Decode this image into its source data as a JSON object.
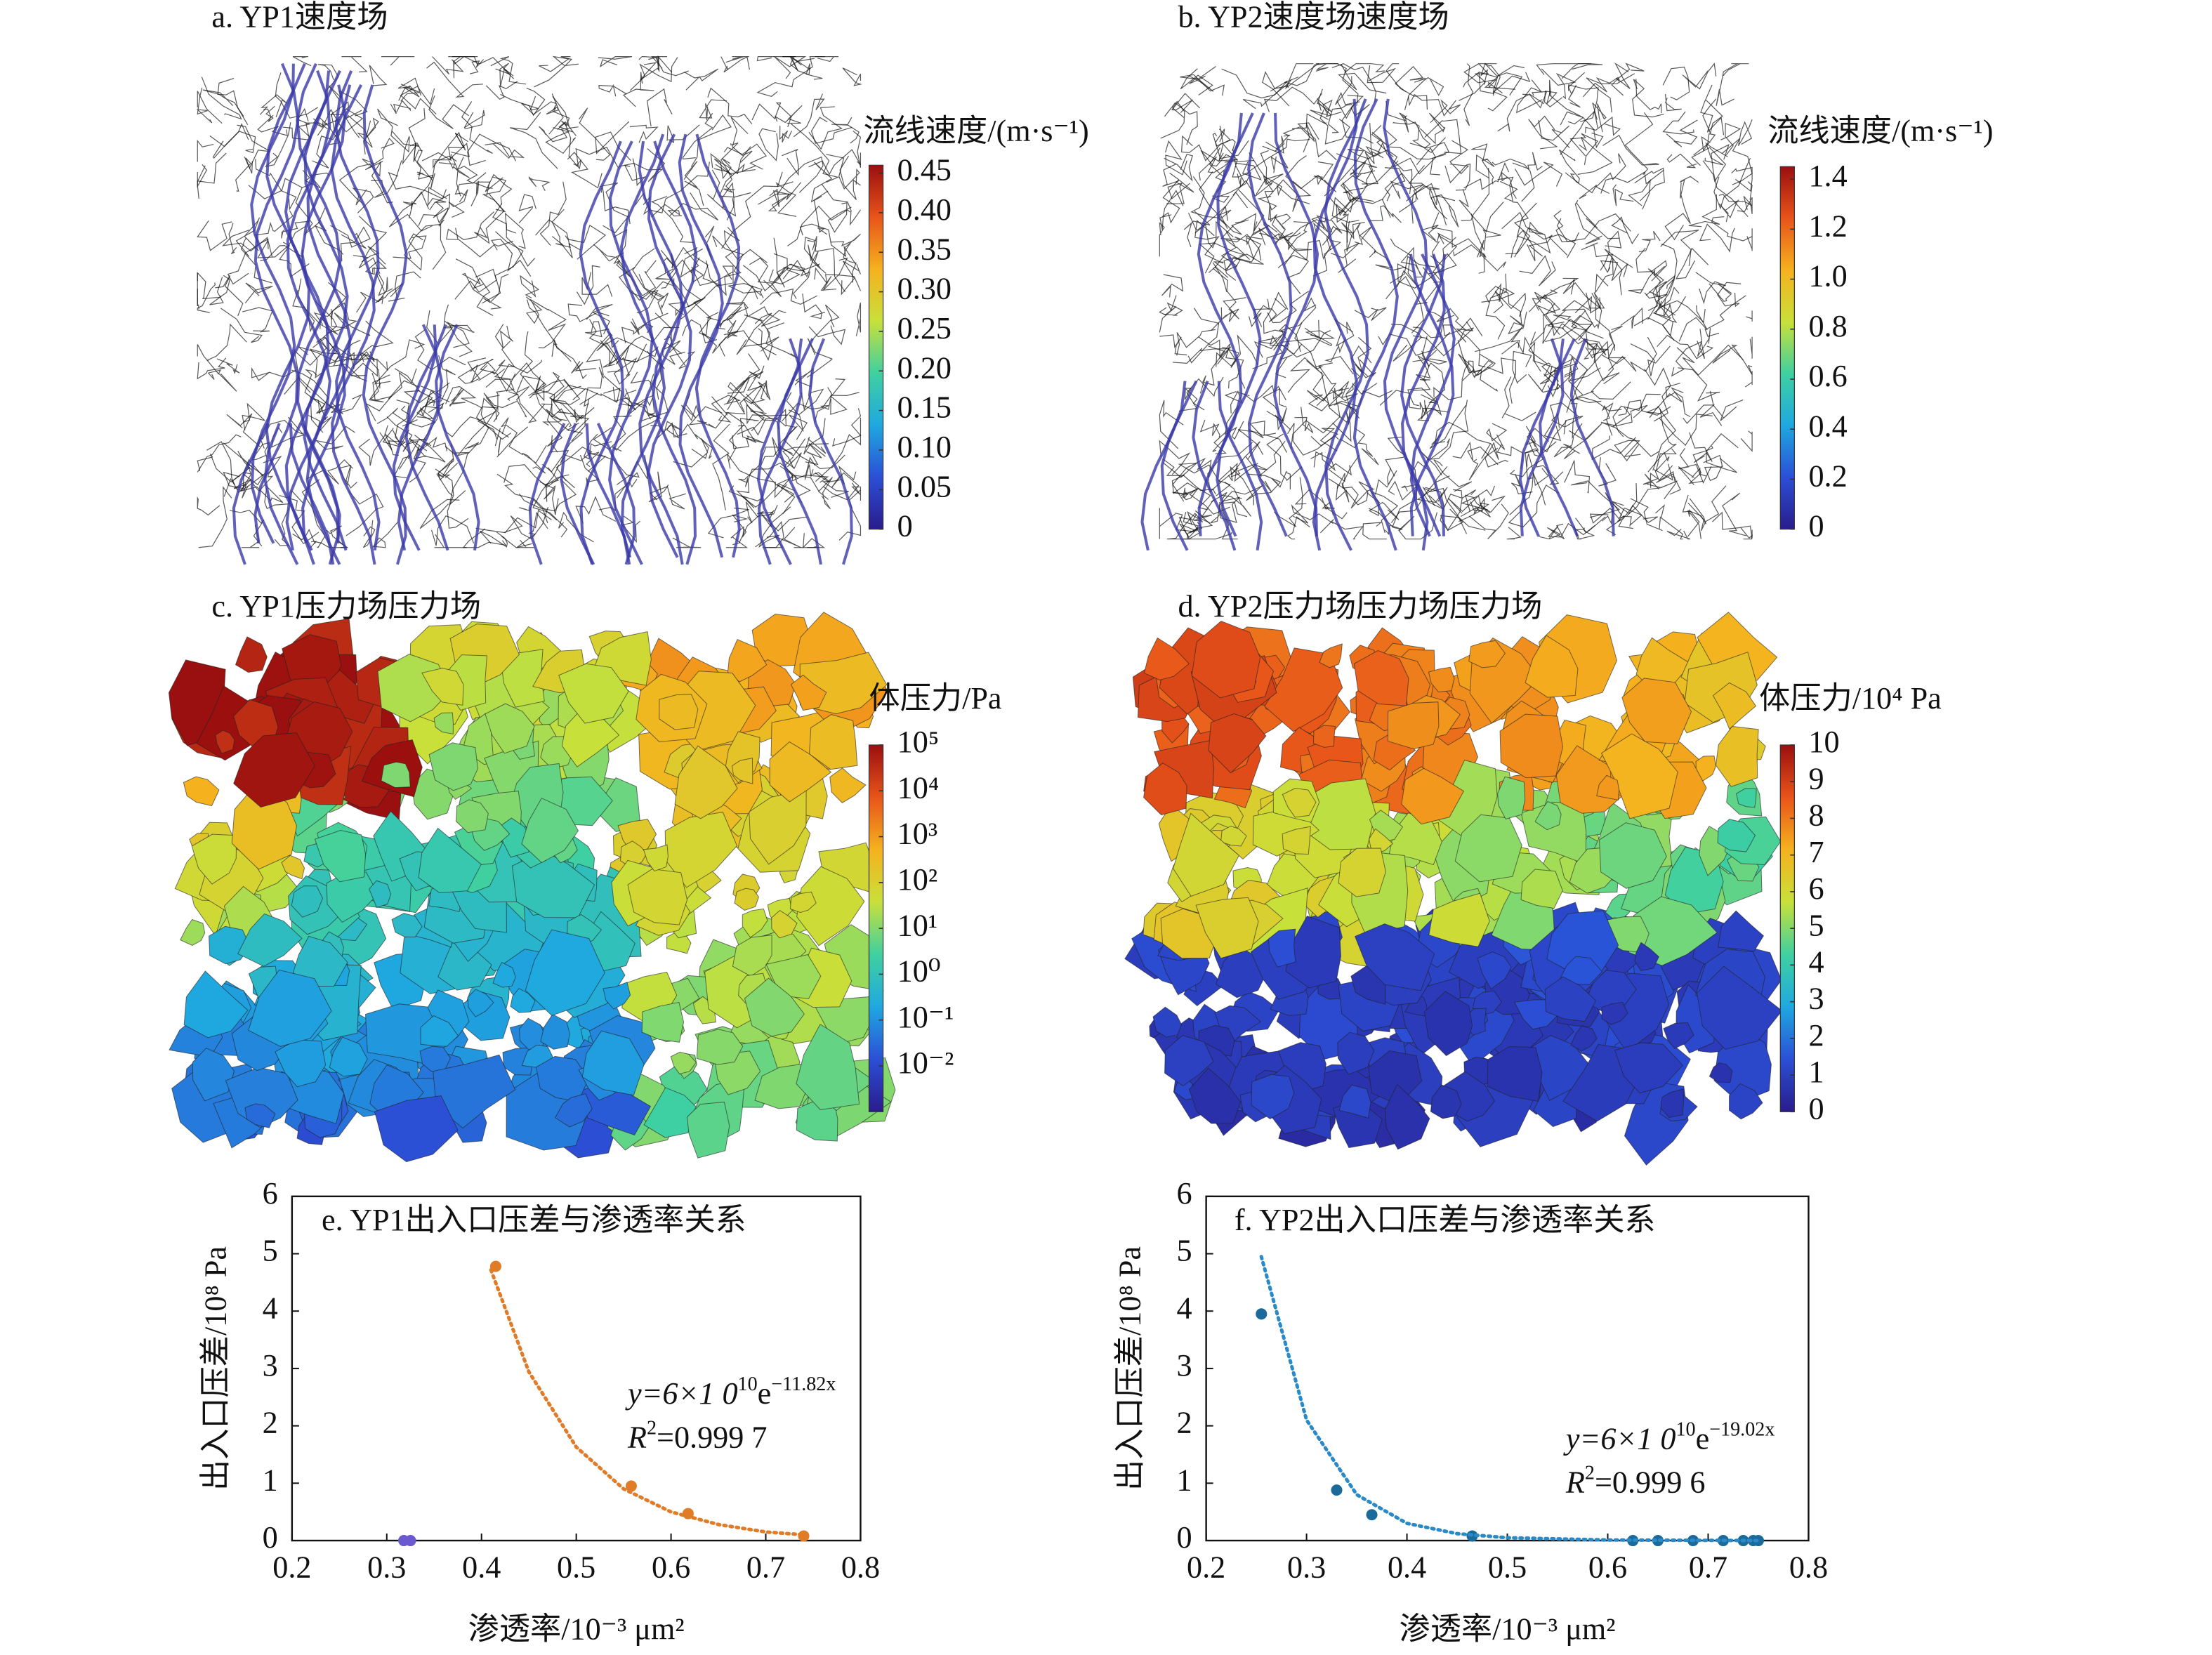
{
  "chart_data": [
    {
      "type": "field",
      "title": "a. YP1速度场",
      "clabel": "流线速度/(m·s⁻¹)",
      "clim": [
        0,
        0.46
      ],
      "log": false,
      "colormap": [
        "#2a1c8c",
        "#2b4fd6",
        "#1fa8e0",
        "#3fd0a0",
        "#c8e03a",
        "#f5b21e",
        "#e8541a",
        "#9a0f0f"
      ],
      "cticks": [
        0,
        0.05,
        {
          "value": 0.1,
          "label": "0.10"
        },
        0.15,
        {
          "value": 0.2,
          "label": "0.20"
        },
        0.25,
        {
          "value": 0.3,
          "label": "0.30"
        },
        0.35,
        {
          "value": 0.4,
          "label": "0.40"
        },
        0.45
      ]
    },
    {
      "type": "field",
      "title": "b. YP2速度场速度场",
      "clabel": "流线速度/(m·s⁻¹)",
      "clim": [
        0,
        1.45
      ],
      "log": false,
      "colormap": [
        "#2a1c8c",
        "#2b4fd6",
        "#1fa8e0",
        "#3fd0a0",
        "#c8e03a",
        "#f5b21e",
        "#e8541a",
        "#9a0f0f"
      ],
      "cticks": [
        0,
        0.2,
        0.4,
        0.6,
        0.8,
        {
          "value": 1,
          "label": "1.0"
        },
        1.2,
        1.4
      ]
    },
    {
      "type": "field",
      "title": "c. YP1压力场压力场",
      "clabel": "体压力/Pa",
      "clim": [
        0.001,
        100000
      ],
      "log": true,
      "colormap": [
        "#2a1c8c",
        "#2b4fd6",
        "#1fa8e0",
        "#3fd0a0",
        "#c8e03a",
        "#f5b21e",
        "#e8541a",
        "#9a0f0f"
      ],
      "cticks": [
        {
          "value": 0.01,
          "label": "10⁻²"
        },
        {
          "value": 0.1,
          "label": "10⁻¹"
        },
        {
          "value": 1,
          "label": "10⁰"
        },
        {
          "value": 10,
          "label": "10¹"
        },
        {
          "value": 100,
          "label": "10²"
        },
        {
          "value": 1000,
          "label": "10³"
        },
        {
          "value": 10000,
          "label": "10⁴"
        },
        {
          "value": 100000,
          "label": "10⁵"
        }
      ]
    },
    {
      "type": "field",
      "title": "d. YP2压力场压力场压力场",
      "clabel": "体压力/10⁴ Pa",
      "clim": [
        0,
        10
      ],
      "log": false,
      "colormap": [
        "#2a1c8c",
        "#2b4fd6",
        "#1fa8e0",
        "#3fd0a0",
        "#c8e03a",
        "#f5b21e",
        "#e8541a",
        "#9a0f0f"
      ],
      "cticks": [
        0,
        1,
        2,
        3,
        4,
        5,
        6,
        7,
        8,
        9,
        10
      ]
    },
    {
      "type": "scatter",
      "title": "e. YP1出入口压差与渗透率关系",
      "xlabel": "渗透率/10⁻³ μm²",
      "ylabel": "出入口压差/10⁸ Pa",
      "xlim": [
        0.2,
        0.8
      ],
      "ylim": [
        0,
        6
      ],
      "xticks": [
        0.2,
        0.3,
        0.4,
        0.5,
        0.6,
        0.7,
        0.8
      ],
      "yticks": [
        0,
        1,
        2,
        3,
        4,
        5,
        6
      ],
      "series": [
        {
          "color": "#e07b28",
          "style": "points",
          "x": [
            0.415,
            0.558,
            0.618,
            0.74
          ],
          "values": [
            4.78,
            0.95,
            0.47,
            0.08
          ]
        },
        {
          "color": "#6a5acd",
          "style": "points",
          "x": [
            0.318,
            0.325
          ],
          "values": [
            0,
            0
          ]
        },
        {
          "color": "#e07b28",
          "style": "dotted",
          "x": [
            0.41,
            0.45,
            0.5,
            0.55,
            0.6,
            0.65,
            0.7,
            0.74
          ],
          "values": [
            4.72,
            2.94,
            1.63,
            0.9,
            0.5,
            0.28,
            0.15,
            0.1
          ]
        }
      ],
      "equation": [
        "y=6×1 0",
        "10",
        "e",
        "−11.82x"
      ],
      "r2": [
        "R",
        "2",
        "=0.999 7"
      ]
    },
    {
      "type": "scatter",
      "title": "f. YP2出入口压差与渗透率关系",
      "xlabel": "渗透率/10⁻³ μm²",
      "ylabel": "出入口压差/10⁸ Pa",
      "xlim": [
        0.2,
        0.8
      ],
      "ylim": [
        0,
        6
      ],
      "xticks": [
        0.2,
        0.3,
        0.4,
        0.5,
        0.6,
        0.7,
        0.8
      ],
      "yticks": [
        0,
        1,
        2,
        3,
        4,
        5,
        6
      ],
      "series": [
        {
          "color": "#1b6a9a",
          "style": "points",
          "x": [
            0.255,
            0.33,
            0.365,
            0.465,
            0.625,
            0.65,
            0.685,
            0.715,
            0.735,
            0.745,
            0.75
          ],
          "values": [
            3.95,
            0.88,
            0.45,
            0.08,
            0,
            0,
            0,
            0,
            0,
            0,
            0
          ]
        },
        {
          "color": "#2a8ac8",
          "style": "dotted",
          "x": [
            0.255,
            0.3,
            0.35,
            0.4,
            0.45,
            0.5,
            0.6,
            0.75
          ],
          "values": [
            4.95,
            2.1,
            0.8,
            0.3,
            0.12,
            0.05,
            0.01,
            0
          ]
        }
      ],
      "equation": [
        "y=6×1 0",
        "10",
        "e",
        "−19.02x"
      ],
      "r2": [
        "R",
        "2",
        "=0.999 6"
      ]
    }
  ]
}
